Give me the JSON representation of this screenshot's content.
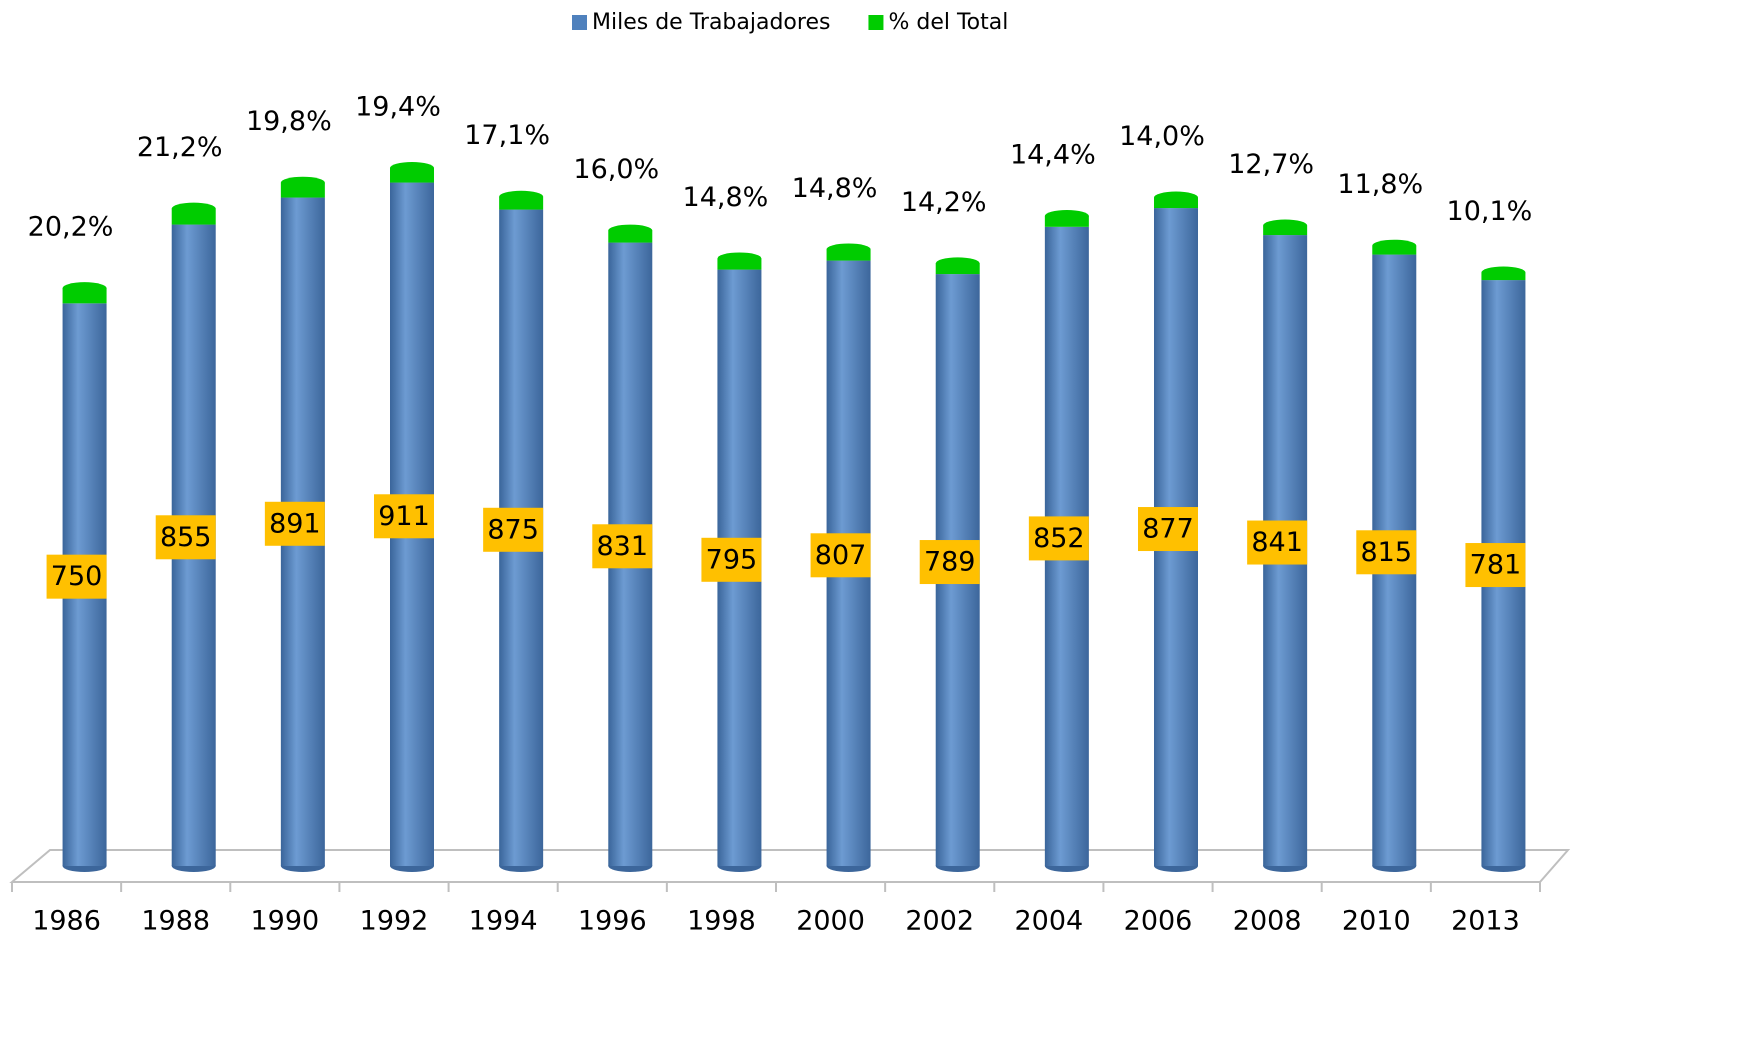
{
  "chart_data": {
    "type": "bar3d_stacked",
    "categories": [
      "1986",
      "1988",
      "1990",
      "1992",
      "1994",
      "1996",
      "1998",
      "2000",
      "2002",
      "2004",
      "2006",
      "2008",
      "2010",
      "2013"
    ],
    "series": [
      {
        "name": "Miles de Trabajadores",
        "color": "#4f81bd",
        "values": [
          750,
          855,
          891,
          911,
          875,
          831,
          795,
          807,
          789,
          852,
          877,
          841,
          815,
          781
        ]
      },
      {
        "name": "% del Total",
        "color": "#00cc00",
        "values": [
          20.2,
          21.2,
          19.8,
          19.4,
          17.1,
          16.0,
          14.8,
          14.8,
          14.2,
          14.4,
          14.0,
          12.7,
          11.8,
          10.1
        ],
        "value_labels": [
          "20,2%",
          "21,2%",
          "19,8%",
          "19,4%",
          "17,1%",
          "16,0%",
          "14,8%",
          "14,8%",
          "14,2%",
          "14,4%",
          "14,0%",
          "12,7%",
          "11,8%",
          "10,1%"
        ]
      }
    ],
    "legend": "top"
  }
}
